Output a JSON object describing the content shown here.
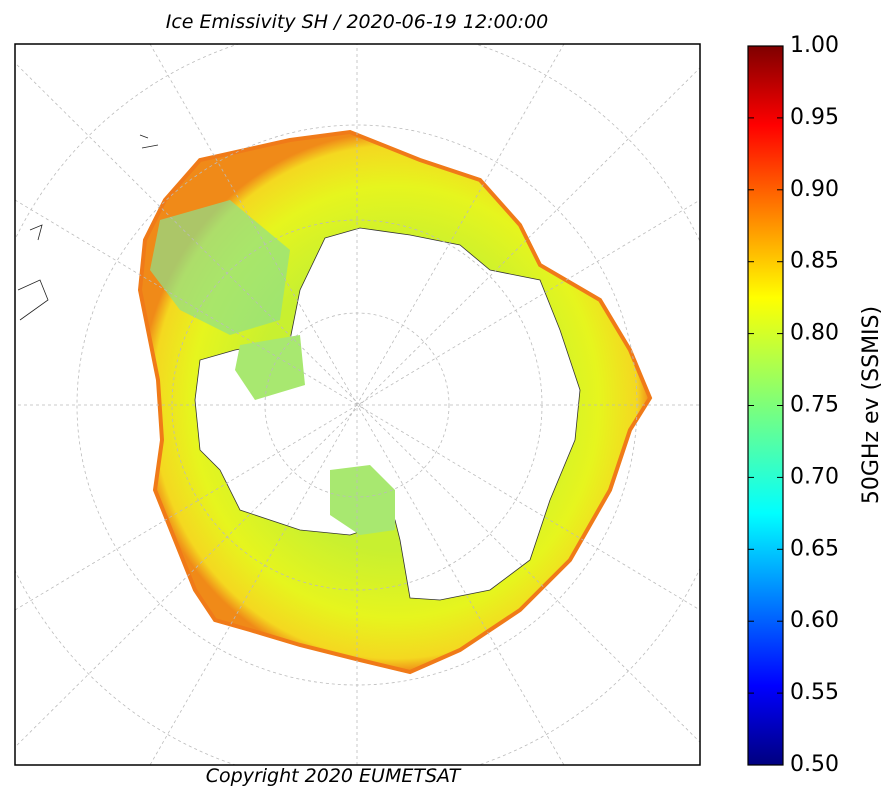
{
  "chart_data": {
    "type": "map",
    "title": "Ice Emissivity SH / 2020-06-19 12:00:00",
    "copyright": "Copyright 2020 EUMETSAT",
    "colorbar": {
      "label": "50GHz ev (SSMIS)",
      "colormap": "jet",
      "lim": [
        0.5,
        1
      ],
      "ticks": [
        {
          "value": 0.5,
          "label": "0.50"
        },
        0.55,
        {
          "value": 0.6,
          "label": "0.60"
        },
        0.65,
        {
          "value": 0.7,
          "label": "0.70"
        },
        0.75,
        {
          "value": 0.8,
          "label": "0.80"
        },
        0.85,
        {
          "value": 0.9,
          "label": "0.90"
        },
        0.95,
        {
          "value": 1,
          "label": "1.00"
        }
      ]
    }
  }
}
